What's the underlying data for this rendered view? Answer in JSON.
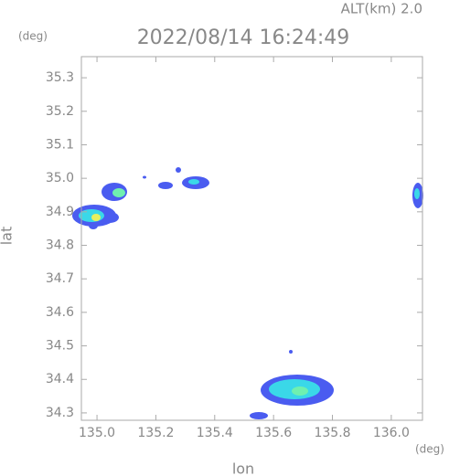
{
  "chart_data": {
    "type": "radar-map",
    "title": "2022/08/14 16:24:49",
    "annotation": "ALT(km) 2.0",
    "x_label": "lon",
    "y_label": "lat",
    "x_unit": "(deg)",
    "y_unit": "(deg)",
    "xlim": [
      134.947,
      136.106
    ],
    "ylim": [
      34.278,
      35.363
    ],
    "xticks": [
      {
        "value": 135,
        "label": "135.0"
      },
      135.2,
      135.4,
      135.6,
      135.8,
      {
        "value": 136,
        "label": "136.0"
      }
    ],
    "yticks": [
      34.3,
      34.4,
      34.5,
      34.6,
      34.7,
      34.8,
      34.9,
      {
        "value": 35,
        "label": "35.0"
      },
      35.1,
      35.2,
      35.3
    ]
  }
}
